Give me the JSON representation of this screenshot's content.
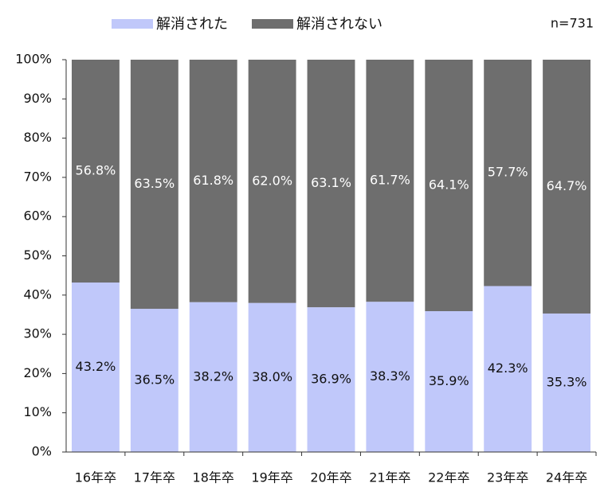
{
  "chart_data": {
    "type": "stacked_bar_100",
    "annotation": "n=731",
    "categories": [
      "16年卒",
      "17年卒",
      "18年卒",
      "19年卒",
      "20年卒",
      "21年卒",
      "22年卒",
      "23年卒",
      "24年卒"
    ],
    "series": [
      {
        "name": "解消された",
        "color": "#c0c8fa",
        "values": [
          43.2,
          36.5,
          38.2,
          38.0,
          36.9,
          38.3,
          35.9,
          42.3,
          35.3
        ],
        "value_labels": [
          "43.2%",
          "36.5%",
          "38.2%",
          "38.0%",
          "36.9%",
          "38.3%",
          "35.9%",
          "42.3%",
          "35.3%"
        ]
      },
      {
        "name": "解消されない",
        "color": "#6e6e6e",
        "values": [
          56.8,
          63.5,
          61.8,
          62.0,
          63.1,
          61.7,
          64.1,
          57.7,
          64.7
        ],
        "value_labels": [
          "56.8%",
          "63.5%",
          "61.8%",
          "62.0%",
          "63.1%",
          "61.7%",
          "64.1%",
          "57.7%",
          "64.7%"
        ]
      }
    ],
    "ylim": [
      0,
      100
    ],
    "yticks": [
      {
        "value": 0,
        "label": "0%"
      },
      {
        "value": 10,
        "label": "10%"
      },
      {
        "value": 20,
        "label": "20%"
      },
      {
        "value": 30,
        "label": "30%"
      },
      {
        "value": 40,
        "label": "40%"
      },
      {
        "value": 50,
        "label": "50%"
      },
      {
        "value": 60,
        "label": "60%"
      },
      {
        "value": 70,
        "label": "70%"
      },
      {
        "value": 80,
        "label": "80%"
      },
      {
        "value": 90,
        "label": "90%"
      },
      {
        "value": 100,
        "label": "100%"
      }
    ],
    "legend": "top"
  }
}
